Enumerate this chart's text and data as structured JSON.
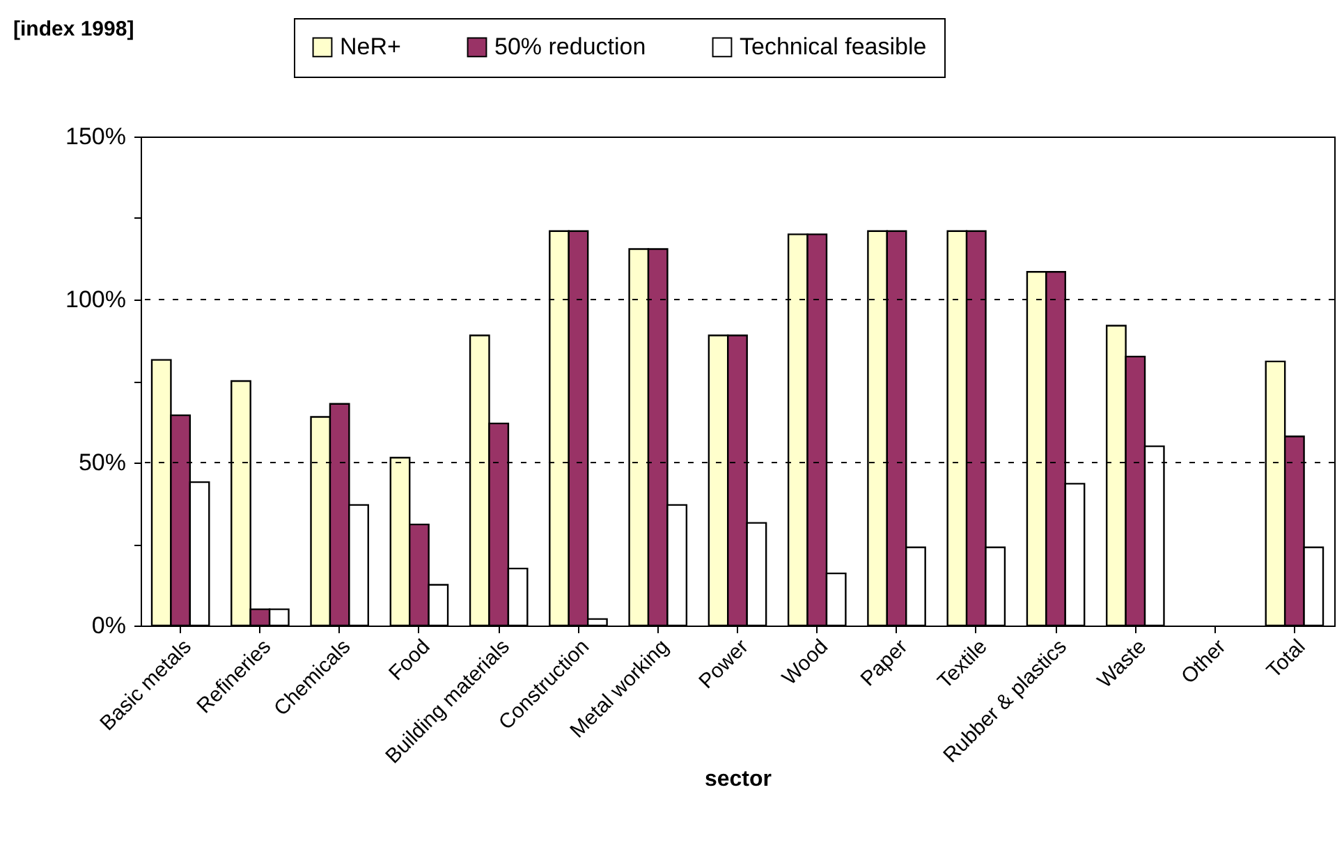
{
  "chart_data": {
    "type": "bar",
    "ylabel": "[index 1998]",
    "xlabel": "sector",
    "categories": [
      "Basic metals",
      "Refineries",
      "Chemicals",
      "Food",
      "Building materials",
      "Construction",
      "Metal working",
      "Power",
      "Wood",
      "Paper",
      "Textile",
      "Rubber & plastics",
      "Waste",
      "Other",
      "Total"
    ],
    "series": [
      {
        "name": "NeR+",
        "color": "#ffffcc",
        "values": [
          81.5,
          75,
          64,
          51.5,
          89,
          121,
          115.5,
          89,
          120,
          121,
          121,
          108.5,
          92,
          null,
          81
        ]
      },
      {
        "name": "50% reduction",
        "color": "#993366",
        "values": [
          64.5,
          5,
          68,
          31,
          62,
          121,
          115.5,
          89,
          120,
          121,
          121,
          108.5,
          82.5,
          null,
          58
        ]
      },
      {
        "name": "Technical feasible",
        "color": "#ffffff",
        "values": [
          44,
          5,
          37,
          12.5,
          17.5,
          2,
          37,
          31.5,
          16,
          24,
          24,
          43.5,
          55,
          null,
          24
        ]
      }
    ],
    "ylim": [
      0,
      150
    ],
    "yticks": [
      {
        "value": 0,
        "label": "0%"
      },
      {
        "value": 25,
        "label": null
      },
      {
        "value": 50,
        "label": "50%"
      },
      {
        "value": 75,
        "label": null
      },
      {
        "value": 100,
        "label": "100%"
      },
      {
        "value": 125,
        "label": null
      },
      {
        "value": 150,
        "label": "150%"
      }
    ],
    "grid": "y",
    "line_style": "dashed",
    "legend": "top"
  }
}
